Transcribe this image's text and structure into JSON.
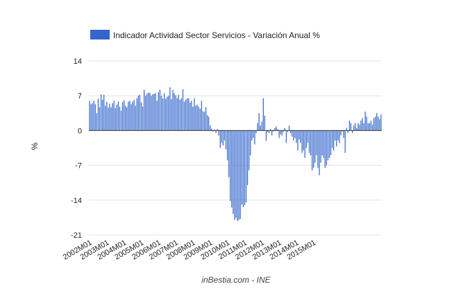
{
  "chart_data": {
    "type": "bar",
    "legend": {
      "label": "Indicador Actividad Sector Servicios - Variación Anual %",
      "position": "top"
    },
    "ylabel": "%",
    "xlabel": "",
    "ylim": [
      -21,
      14
    ],
    "yticks": [
      14,
      7,
      0,
      -7,
      -14,
      -21
    ],
    "xtick_labels": [
      "2002M01",
      "2003M01",
      "2004M01",
      "2005M01",
      "2006M01",
      "2007M01",
      "2008M01",
      "2009M01",
      "2010M01",
      "2011M01",
      "2012M01",
      "2013M01",
      "2014M01",
      "2015M01"
    ],
    "grid": true,
    "color": "#3366cc",
    "source": "inBestia.com - INE",
    "series": [
      {
        "start": "2002M01",
        "values": [
          6,
          5.3,
          5.5,
          6,
          5.3,
          3.5,
          6.4,
          4.7,
          7.3,
          6.2,
          7.2,
          5,
          5.8,
          4.6,
          5.4,
          4.7,
          5.5,
          6,
          4.5,
          5.2,
          5.8,
          4.8,
          4,
          5.7,
          6.1,
          5,
          4.7,
          5.8,
          6,
          5.3,
          5.8,
          6.2,
          5,
          6.5,
          7,
          7.2,
          5.7,
          4.8,
          8.2,
          7,
          7.4,
          7.6,
          7.6,
          7,
          7.3,
          7.4,
          7.5,
          6,
          7.7,
          8.2,
          7,
          6.5,
          7.5,
          6.4,
          6.8,
          7,
          8.7,
          6.3,
          8.2,
          7.5,
          7.1,
          6.5,
          7.2,
          6.2,
          6.5,
          8.3,
          5.8,
          6.2,
          6.5,
          6.5,
          5.6,
          6,
          4.8,
          6.5,
          5,
          5.2,
          4.8,
          4.4,
          6,
          3.9,
          3.8,
          4.7,
          3.1,
          2.8,
          1,
          0.4,
          -0.2,
          0.2,
          -0.5,
          0.3,
          -1,
          -3.5,
          -2.5,
          -3,
          -2,
          -3.8,
          -6,
          -9.4,
          -14.2,
          -15.5,
          -16.8,
          -18,
          -17.6,
          -18.2,
          -18,
          -17.8,
          -14.9,
          -15.4,
          -15,
          -14.5,
          -11,
          -8,
          -5,
          -2,
          -1.5,
          -2.8,
          -0.5,
          1.5,
          3.5,
          1,
          1.8,
          6.5,
          3,
          -2.1,
          -0.3,
          -0.5,
          0.3,
          -1,
          -0.2,
          0.5,
          0.8,
          0.3,
          -1.5,
          -0.8,
          -1,
          -0.3,
          0.5,
          -2.5,
          -0.3,
          1,
          -0.5,
          -1.2,
          -2,
          -1.5,
          -2.5,
          -4,
          -1.8,
          -2.5,
          -4.5,
          -4,
          -5.5,
          -3.5,
          -2.5,
          -4.5,
          -5,
          -8,
          -7.5,
          -6.5,
          -5,
          -7.5,
          -9,
          -6.5,
          -5,
          -5.5,
          -7.5,
          -7,
          -6,
          -5.5,
          -5,
          -3.5,
          -4,
          -2,
          -3.2,
          -2,
          -2.5,
          -1,
          -0.2,
          -1.5,
          -4.5,
          0.5,
          -0.5,
          2,
          1.5,
          -0.5,
          1,
          1.5,
          0.5,
          1.5,
          1.2,
          2,
          2.5,
          1.5,
          3.8,
          2.8,
          1.5,
          1.5,
          2,
          1.2,
          2.5,
          2.8,
          3.5,
          2.8,
          2.3,
          3.2
        ]
      }
    ]
  }
}
